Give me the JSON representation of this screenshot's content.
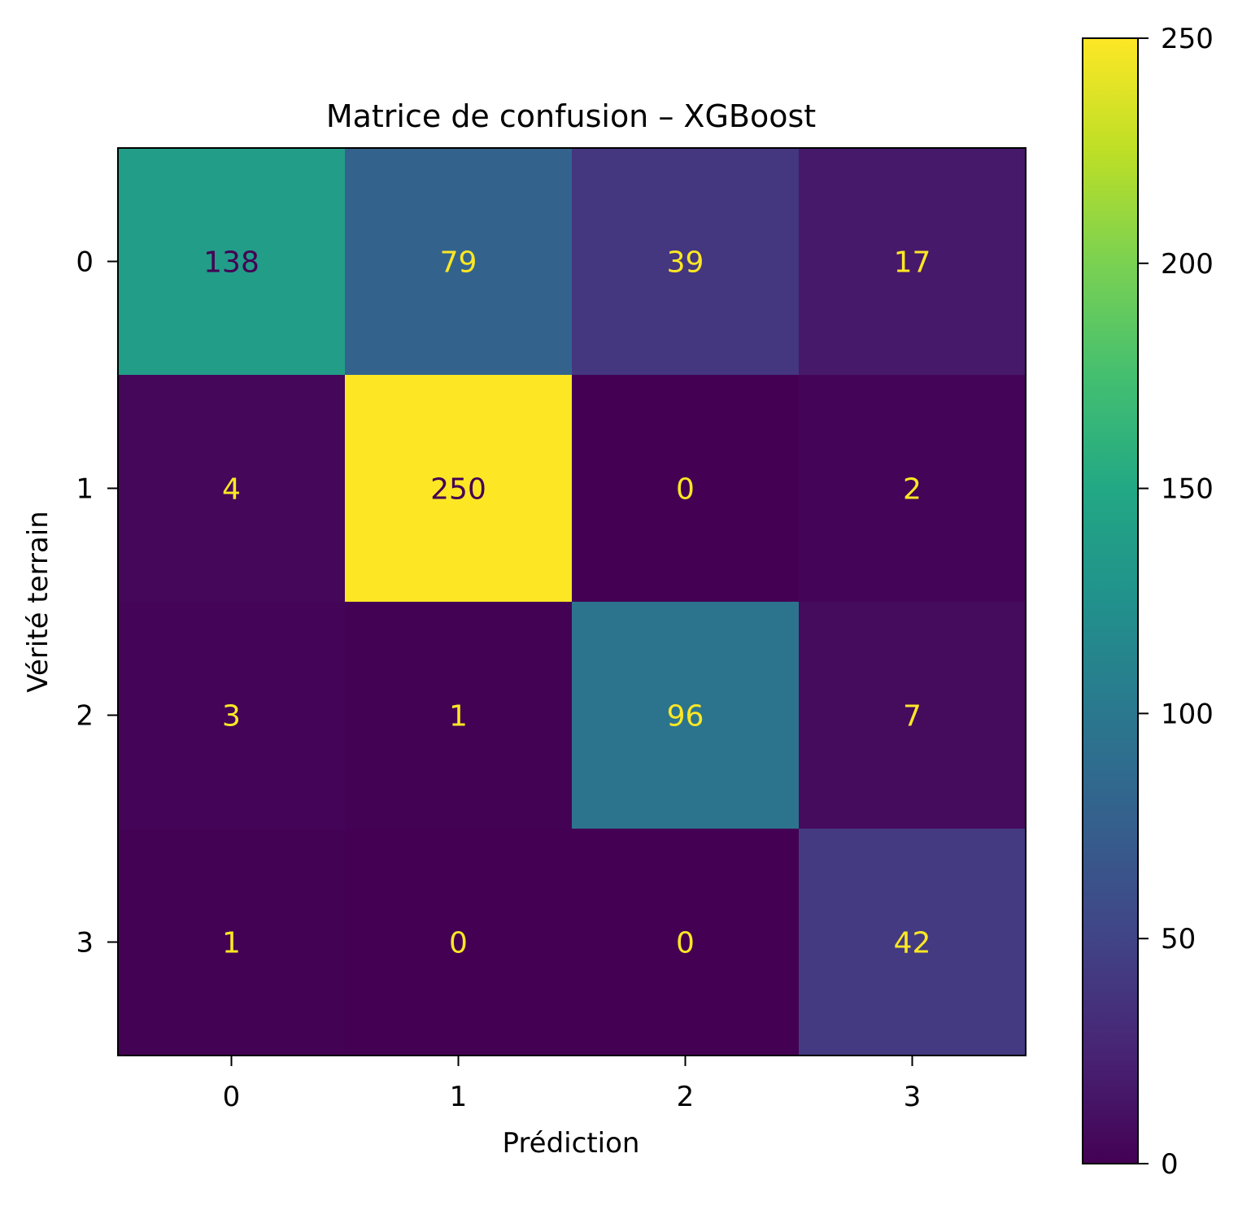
{
  "chart_data": {
    "type": "heatmap",
    "title": "Matrice de confusion – XGBoost",
    "xlabel": "Prédiction",
    "ylabel": "Vérité terrain",
    "x_categories": [
      "0",
      "1",
      "2",
      "3"
    ],
    "y_categories": [
      "0",
      "1",
      "2",
      "3"
    ],
    "values": [
      [
        138,
        79,
        39,
        17
      ],
      [
        4,
        250,
        0,
        2
      ],
      [
        3,
        1,
        96,
        7
      ],
      [
        1,
        0,
        0,
        42
      ]
    ],
    "colormap": "viridis",
    "colorbar": {
      "range": [
        0,
        250
      ],
      "ticks": [
        "0",
        "50",
        "100",
        "150",
        "200",
        "250"
      ]
    },
    "grid": false
  }
}
